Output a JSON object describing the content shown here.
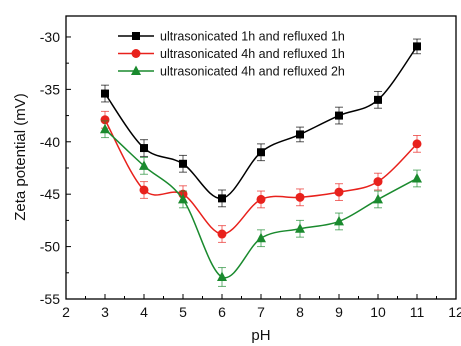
{
  "chart_data": {
    "type": "line",
    "xlabel": "pH",
    "ylabel": "Zeta potential (mV)",
    "xlim": [
      2,
      12
    ],
    "ylim": [
      -55,
      -28
    ],
    "x_ticks": [
      "2",
      "3",
      "4",
      "5",
      "6",
      "7",
      "8",
      "9",
      "10",
      "11",
      "12"
    ],
    "y_ticks": [
      "-55",
      "-50",
      "-45",
      "-40",
      "-35",
      "-30"
    ],
    "grid": false,
    "legend_position": "top-left",
    "series": [
      {
        "name": "ultrasonicated 1h and refluxed 1h",
        "color": "#000000",
        "marker": "square",
        "x": [
          3,
          4,
          5,
          6,
          7,
          8,
          9,
          10,
          11
        ],
        "values": [
          -35.4,
          -40.6,
          -42.1,
          -45.4,
          -41.0,
          -39.3,
          -37.5,
          -36.0,
          -30.9
        ],
        "errors": [
          0.8,
          0.8,
          0.8,
          0.8,
          0.8,
          0.7,
          0.8,
          0.8,
          0.7
        ]
      },
      {
        "name": "ultrasonicated 4h and refluxed 1h",
        "color": "#e8211c",
        "marker": "circle",
        "x": [
          3,
          4,
          5,
          6,
          7,
          8,
          9,
          10,
          11
        ],
        "values": [
          -37.9,
          -44.6,
          -45.0,
          -48.8,
          -45.5,
          -45.3,
          -44.8,
          -43.8,
          -40.2
        ],
        "errors": [
          0.8,
          0.8,
          0.8,
          0.8,
          0.8,
          0.8,
          0.8,
          0.8,
          0.8
        ]
      },
      {
        "name": "ultrasonicated 4h and refluxed 2h",
        "color": "#1a8a2e",
        "marker": "triangle",
        "x": [
          3,
          4,
          5,
          6,
          7,
          8,
          9,
          10,
          11
        ],
        "values": [
          -38.8,
          -42.3,
          -45.5,
          -52.9,
          -49.2,
          -48.3,
          -47.6,
          -45.5,
          -43.5
        ],
        "errors": [
          0.8,
          0.8,
          0.8,
          0.9,
          0.8,
          0.8,
          0.8,
          0.8,
          0.8
        ]
      }
    ]
  }
}
